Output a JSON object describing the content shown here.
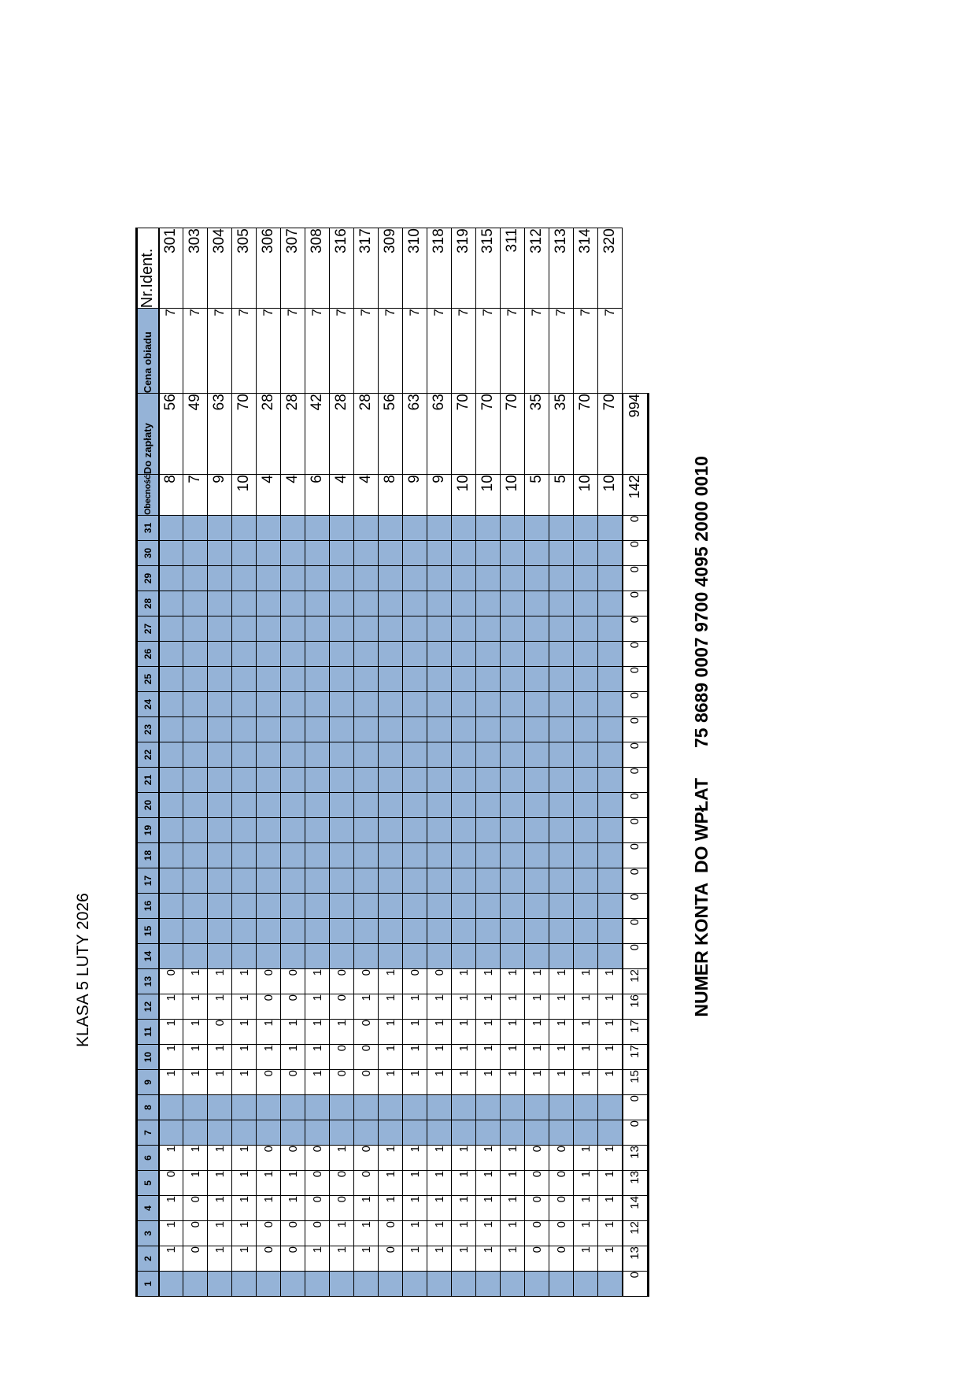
{
  "title": "KLASA 5 LUTY 2026",
  "account": {
    "label": "NUMER KONTA  DO WPŁAT",
    "number": "75 8689 0007 9700 4095 2000 0010"
  },
  "colors": {
    "cell_blue": "#95B3D7",
    "value_blue": "#4F81BD",
    "border": "#000000"
  },
  "table": {
    "headers": {
      "days": [
        "1",
        "2",
        "3",
        "4",
        "5",
        "6",
        "7",
        "8",
        "9",
        "10",
        "11",
        "12",
        "13",
        "14",
        "15",
        "16",
        "17",
        "18",
        "19",
        "20",
        "21",
        "22",
        "23",
        "24",
        "25",
        "26",
        "27",
        "28",
        "29",
        "30",
        "31"
      ],
      "obecnosc": "Obecność",
      "do_zaplaty": "Do zapłaty",
      "cena_obiadu": "Cena obiadu",
      "nr_ident": "Nr.Ident."
    },
    "students": [
      {
        "id": "301",
        "days": {
          "2": 1,
          "3": 1,
          "4": 1,
          "5": 0,
          "6": 1,
          "9": 1,
          "10": 1,
          "11": 1,
          "12": 1,
          "13": 0
        },
        "obecnosc": 8,
        "do_zaplaty": 56,
        "cena_obiadu": 7
      },
      {
        "id": "303",
        "days": {
          "2": 0,
          "3": 0,
          "4": 0,
          "5": 1,
          "6": 1,
          "9": 1,
          "10": 1,
          "11": 1,
          "12": 1,
          "13": 1
        },
        "obecnosc": 7,
        "do_zaplaty": 49,
        "cena_obiadu": 7
      },
      {
        "id": "304",
        "days": {
          "2": 1,
          "3": 1,
          "4": 1,
          "5": 1,
          "6": 1,
          "9": 1,
          "10": 1,
          "11": 0,
          "12": 1,
          "13": 1
        },
        "obecnosc": 9,
        "do_zaplaty": 63,
        "cena_obiadu": 7
      },
      {
        "id": "305",
        "days": {
          "2": 1,
          "3": 1,
          "4": 1,
          "5": 1,
          "6": 1,
          "9": 1,
          "10": 1,
          "11": 1,
          "12": 1,
          "13": 1
        },
        "obecnosc": 10,
        "do_zaplaty": 70,
        "cena_obiadu": 7
      },
      {
        "id": "306",
        "days": {
          "2": 0,
          "3": 0,
          "4": 1,
          "5": 1,
          "6": 0,
          "9": 0,
          "10": 1,
          "11": 1,
          "12": 0,
          "13": 0
        },
        "obecnosc": 4,
        "do_zaplaty": 28,
        "cena_obiadu": 7
      },
      {
        "id": "307",
        "days": {
          "2": 0,
          "3": 0,
          "4": 1,
          "5": 1,
          "6": 0,
          "9": 0,
          "10": 1,
          "11": 1,
          "12": 0,
          "13": 0
        },
        "obecnosc": 4,
        "do_zaplaty": 28,
        "cena_obiadu": 7
      },
      {
        "id": "308",
        "days": {
          "2": 1,
          "3": 0,
          "4": 0,
          "5": 0,
          "6": 0,
          "9": 1,
          "10": 1,
          "11": 1,
          "12": 1,
          "13": 1
        },
        "obecnosc": 6,
        "do_zaplaty": 42,
        "cena_obiadu": 7
      },
      {
        "id": "316",
        "days": {
          "2": 1,
          "3": 1,
          "4": 0,
          "5": 0,
          "6": 1,
          "9": 0,
          "10": 0,
          "11": 1,
          "12": 0,
          "13": 0
        },
        "obecnosc": 4,
        "do_zaplaty": 28,
        "cena_obiadu": 7
      },
      {
        "id": "317",
        "days": {
          "2": 1,
          "3": 1,
          "4": 1,
          "5": 0,
          "6": 0,
          "9": 0,
          "10": 0,
          "11": 0,
          "12": 1,
          "13": 0
        },
        "obecnosc": 4,
        "do_zaplaty": 28,
        "cena_obiadu": 7
      },
      {
        "id": "309",
        "days": {
          "2": 0,
          "3": 0,
          "4": 1,
          "5": 1,
          "6": 1,
          "9": 1,
          "10": 1,
          "11": 1,
          "12": 1,
          "13": 1
        },
        "obecnosc": 8,
        "do_zaplaty": 56,
        "cena_obiadu": 7
      },
      {
        "id": "310",
        "days": {
          "2": 1,
          "3": 1,
          "4": 1,
          "5": 1,
          "6": 1,
          "9": 1,
          "10": 1,
          "11": 1,
          "12": 1,
          "13": 0
        },
        "obecnosc": 9,
        "do_zaplaty": 63,
        "cena_obiadu": 7
      },
      {
        "id": "318",
        "days": {
          "2": 1,
          "3": 1,
          "4": 1,
          "5": 1,
          "6": 1,
          "9": 1,
          "10": 1,
          "11": 1,
          "12": 1,
          "13": 0
        },
        "obecnosc": 9,
        "do_zaplaty": 63,
        "cena_obiadu": 7
      },
      {
        "id": "319",
        "days": {
          "2": 1,
          "3": 1,
          "4": 1,
          "5": 1,
          "6": 1,
          "9": 1,
          "10": 1,
          "11": 1,
          "12": 1,
          "13": 1
        },
        "obecnosc": 10,
        "do_zaplaty": 70,
        "cena_obiadu": 7
      },
      {
        "id": "315",
        "days": {
          "2": 1,
          "3": 1,
          "4": 1,
          "5": 1,
          "6": 1,
          "9": 1,
          "10": 1,
          "11": 1,
          "12": 1,
          "13": 1
        },
        "obecnosc": 10,
        "do_zaplaty": 70,
        "cena_obiadu": 7
      },
      {
        "id": "311",
        "days": {
          "2": 1,
          "3": 1,
          "4": 1,
          "5": 1,
          "6": 1,
          "9": 1,
          "10": 1,
          "11": 1,
          "12": 1,
          "13": 1
        },
        "obecnosc": 10,
        "do_zaplaty": 70,
        "cena_obiadu": 7
      },
      {
        "id": "312",
        "days": {
          "2": 0,
          "3": 0,
          "4": 0,
          "5": 0,
          "6": 0,
          "9": 1,
          "10": 1,
          "11": 1,
          "12": 1,
          "13": 1
        },
        "obecnosc": 5,
        "do_zaplaty": 35,
        "cena_obiadu": 7
      },
      {
        "id": "313",
        "days": {
          "2": 0,
          "3": 0,
          "4": 0,
          "5": 0,
          "6": 0,
          "9": 1,
          "10": 1,
          "11": 1,
          "12": 1,
          "13": 1
        },
        "obecnosc": 5,
        "do_zaplaty": 35,
        "cena_obiadu": 7
      },
      {
        "id": "314",
        "days": {
          "2": 1,
          "3": 1,
          "4": 1,
          "5": 1,
          "6": 1,
          "9": 1,
          "10": 1,
          "11": 1,
          "12": 1,
          "13": 1
        },
        "obecnosc": 10,
        "do_zaplaty": 70,
        "cena_obiadu": 7
      },
      {
        "id": "320",
        "days": {
          "2": 1,
          "3": 1,
          "4": 1,
          "5": 1,
          "6": 1,
          "9": 1,
          "10": 1,
          "11": 1,
          "12": 1,
          "13": 1
        },
        "obecnosc": 10,
        "do_zaplaty": 70,
        "cena_obiadu": 7
      }
    ],
    "totals": {
      "days": [
        0,
        13,
        12,
        14,
        13,
        13,
        0,
        0,
        15,
        17,
        17,
        16,
        12,
        0,
        0,
        0,
        0,
        0,
        0,
        0,
        0,
        0,
        0,
        0,
        0,
        0,
        0,
        0,
        0,
        0,
        0
      ],
      "obecnosc": 142,
      "do_zaplaty": 994
    }
  }
}
